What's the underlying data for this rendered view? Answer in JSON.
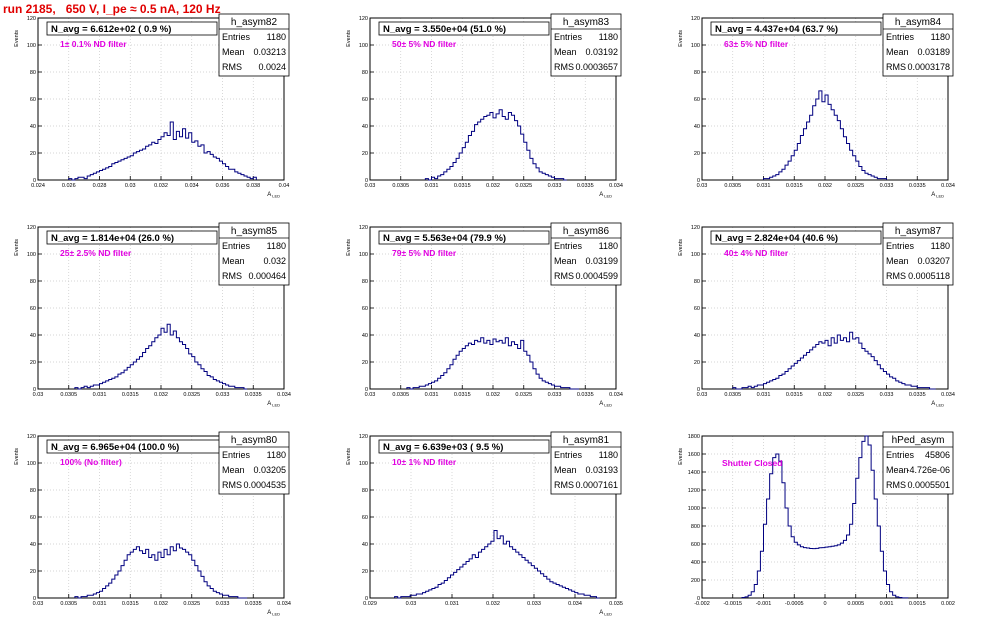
{
  "run_title": "run 2185,   650 V, I_pe ≈ 0.5 nA, 120 Hz",
  "colors": {
    "histogram_line": "#000080",
    "run_title": "#e00000",
    "filter_note": "#e000e0",
    "grid": "#c8c8c8"
  },
  "chart_data": [
    {
      "type": "histogram",
      "hist_name": "h_asym82",
      "stats": [
        {
          "label": "Entries",
          "value": "1180"
        },
        {
          "label": "Mean",
          "value": "0.03213"
        },
        {
          "label": "RMS",
          "value": "0.0024"
        }
      ],
      "navg": "N_avg = 6.612e+02 ( 0.9 %)",
      "note": "1± 0.1% ND filter",
      "ylabel": "Events",
      "xlabel": "A_LED",
      "xlim": [
        0.024,
        0.04
      ],
      "ylim": [
        0,
        120
      ],
      "xticks": [
        0.024,
        0.026,
        0.028,
        0.03,
        0.032,
        0.034,
        0.036,
        0.038,
        0.04
      ],
      "xtick_labels": [
        "0.024",
        "0.026",
        "0.028",
        "0.03",
        "0.032",
        "0.034",
        "0.036",
        "0.038",
        "0.04"
      ],
      "yticks": [
        0,
        20,
        40,
        60,
        80,
        100,
        120
      ],
      "ytick_labels": [
        "0",
        "20",
        "40",
        "60",
        "80",
        "100",
        "120"
      ],
      "bins": {
        "lo": 0.026,
        "hi": 0.0382,
        "n": 61,
        "counts": [
          1,
          0,
          1,
          2,
          2,
          1,
          3,
          4,
          5,
          6,
          7,
          8,
          9,
          10,
          12,
          13,
          14,
          15,
          16,
          17,
          18,
          20,
          21,
          22,
          23,
          25,
          26,
          28,
          27,
          30,
          32,
          35,
          33,
          43,
          30,
          36,
          32,
          38,
          31,
          35,
          28,
          29,
          25,
          26,
          20,
          21,
          19,
          17,
          16,
          14,
          12,
          10,
          8,
          8,
          6,
          5,
          4,
          3,
          2,
          1,
          2
        ]
      }
    },
    {
      "type": "histogram",
      "hist_name": "h_asym83",
      "stats": [
        {
          "label": "Entries",
          "value": "1180"
        },
        {
          "label": "Mean",
          "value": "0.03192"
        },
        {
          "label": "RMS",
          "value": "0.0003657"
        }
      ],
      "navg": "N_avg = 3.550e+04 (51.0 %)",
      "note": "50± 5% ND filter",
      "ylabel": "Events",
      "xlabel": "A_LED",
      "xlim": [
        0.03,
        0.034
      ],
      "ylim": [
        0,
        120
      ],
      "xticks": [
        0.03,
        0.0305,
        0.031,
        0.0315,
        0.032,
        0.0325,
        0.033,
        0.0335,
        0.034
      ],
      "xtick_labels": [
        "0.03",
        "0.0305",
        "0.031",
        "0.0315",
        "0.032",
        "0.0325",
        "0.033",
        "0.0335",
        "0.034"
      ],
      "yticks": [
        0,
        20,
        40,
        60,
        80,
        100,
        120
      ],
      "ytick_labels": [
        "0",
        "20",
        "40",
        "60",
        "80",
        "100",
        "120"
      ],
      "bins": {
        "lo": 0.0309,
        "hi": 0.0332,
        "n": 46,
        "counts": [
          1,
          0,
          2,
          1,
          3,
          4,
          6,
          8,
          10,
          13,
          16,
          20,
          24,
          28,
          33,
          36,
          41,
          43,
          45,
          47,
          48,
          50,
          46,
          49,
          52,
          47,
          45,
          50,
          48,
          44,
          40,
          34,
          28,
          22,
          16,
          12,
          9,
          6,
          5,
          4,
          3,
          2,
          1,
          1,
          1,
          0
        ]
      }
    },
    {
      "type": "histogram",
      "hist_name": "h_asym84",
      "stats": [
        {
          "label": "Entries",
          "value": "1180"
        },
        {
          "label": "Mean",
          "value": "0.03189"
        },
        {
          "label": "RMS",
          "value": "0.0003178"
        }
      ],
      "navg": "N_avg = 4.437e+04 (63.7 %)",
      "note": "63± 5% ND filter",
      "ylabel": "Events",
      "xlabel": "A_LED",
      "xlim": [
        0.03,
        0.034
      ],
      "ylim": [
        0,
        120
      ],
      "xticks": [
        0.03,
        0.0305,
        0.031,
        0.0315,
        0.032,
        0.0325,
        0.033,
        0.0335,
        0.034
      ],
      "xtick_labels": [
        "0.03",
        "0.0305",
        "0.031",
        "0.0315",
        "0.032",
        "0.0325",
        "0.033",
        "0.0335",
        "0.034"
      ],
      "yticks": [
        0,
        20,
        40,
        60,
        80,
        100,
        120
      ],
      "ytick_labels": [
        "0",
        "20",
        "40",
        "60",
        "80",
        "100",
        "120"
      ],
      "bins": {
        "lo": 0.031,
        "hi": 0.033,
        "n": 40,
        "counts": [
          1,
          1,
          2,
          3,
          4,
          6,
          8,
          11,
          14,
          18,
          22,
          27,
          33,
          38,
          43,
          48,
          55,
          60,
          66,
          58,
          63,
          56,
          52,
          48,
          44,
          38,
          32,
          27,
          22,
          18,
          14,
          10,
          7,
          5,
          4,
          3,
          2,
          1,
          1,
          1
        ]
      }
    },
    {
      "type": "histogram",
      "hist_name": "h_asym85",
      "stats": [
        {
          "label": "Entries",
          "value": "1180"
        },
        {
          "label": "Mean",
          "value": "0.032"
        },
        {
          "label": "RMS",
          "value": "0.000464"
        }
      ],
      "navg": "N_avg = 1.814e+04 (26.0 %)",
      "note": "25± 2.5% ND filter",
      "ylabel": "Events",
      "xlabel": "A_LED",
      "xlim": [
        0.03,
        0.034
      ],
      "ylim": [
        0,
        120
      ],
      "xticks": [
        0.03,
        0.0305,
        0.031,
        0.0315,
        0.032,
        0.0325,
        0.033,
        0.0335,
        0.034
      ],
      "xtick_labels": [
        "0.03",
        "0.0305",
        "0.031",
        "0.0315",
        "0.032",
        "0.0325",
        "0.033",
        "0.0335",
        "0.034"
      ],
      "yticks": [
        0,
        20,
        40,
        60,
        80,
        100,
        120
      ],
      "ytick_labels": [
        "0",
        "20",
        "40",
        "60",
        "80",
        "100",
        "120"
      ],
      "bins": {
        "lo": 0.0306,
        "hi": 0.0334,
        "n": 56,
        "counts": [
          1,
          0,
          1,
          2,
          1,
          2,
          3,
          3,
          4,
          5,
          6,
          7,
          8,
          9,
          11,
          12,
          14,
          16,
          18,
          20,
          22,
          24,
          27,
          30,
          32,
          35,
          38,
          40,
          45,
          42,
          48,
          40,
          43,
          38,
          35,
          33,
          30,
          26,
          24,
          20,
          18,
          15,
          13,
          10,
          9,
          7,
          6,
          5,
          4,
          3,
          2,
          2,
          1,
          1,
          1,
          0
        ]
      }
    },
    {
      "type": "histogram",
      "hist_name": "h_asym86",
      "stats": [
        {
          "label": "Entries",
          "value": "1180"
        },
        {
          "label": "Mean",
          "value": "0.03199"
        },
        {
          "label": "RMS",
          "value": "0.0004599"
        }
      ],
      "navg": "N_avg = 5.563e+04 (79.9 %)",
      "note": "79± 5% ND filter",
      "ylabel": "Events",
      "xlabel": "A_LED",
      "xlim": [
        0.03,
        0.034
      ],
      "ylim": [
        0,
        120
      ],
      "xticks": [
        0.03,
        0.0305,
        0.031,
        0.0315,
        0.032,
        0.0325,
        0.033,
        0.0335,
        0.034
      ],
      "xtick_labels": [
        "0.03",
        "0.0305",
        "0.031",
        "0.0315",
        "0.032",
        "0.0325",
        "0.033",
        "0.0335",
        "0.034"
      ],
      "yticks": [
        0,
        20,
        40,
        60,
        80,
        100,
        120
      ],
      "ytick_labels": [
        "0",
        "20",
        "40",
        "60",
        "80",
        "100",
        "120"
      ],
      "bins": {
        "lo": 0.0306,
        "hi": 0.0334,
        "n": 56,
        "counts": [
          1,
          0,
          1,
          1,
          2,
          2,
          3,
          4,
          5,
          6,
          8,
          10,
          12,
          15,
          18,
          22,
          25,
          28,
          30,
          32,
          34,
          33,
          36,
          35,
          38,
          34,
          36,
          33,
          37,
          35,
          36,
          34,
          38,
          32,
          35,
          33,
          30,
          36,
          28,
          25,
          20,
          15,
          11,
          8,
          6,
          5,
          4,
          3,
          2,
          2,
          1,
          1,
          1,
          0,
          0,
          0
        ]
      }
    },
    {
      "type": "histogram",
      "hist_name": "h_asym87",
      "stats": [
        {
          "label": "Entries",
          "value": "1180"
        },
        {
          "label": "Mean",
          "value": "0.03207"
        },
        {
          "label": "RMS",
          "value": "0.0005118"
        }
      ],
      "navg": "N_avg = 2.824e+04 (40.6 %)",
      "note": "40± 4% ND filter",
      "ylabel": "Events",
      "xlabel": "A_LED",
      "xlim": [
        0.03,
        0.034
      ],
      "ylim": [
        0,
        120
      ],
      "xticks": [
        0.03,
        0.0305,
        0.031,
        0.0315,
        0.032,
        0.0325,
        0.033,
        0.0335,
        0.034
      ],
      "xtick_labels": [
        "0.03",
        "0.0305",
        "0.031",
        "0.0315",
        "0.032",
        "0.0325",
        "0.033",
        "0.0335",
        "0.034"
      ],
      "yticks": [
        0,
        20,
        40,
        60,
        80,
        100,
        120
      ],
      "ytick_labels": [
        "0",
        "20",
        "40",
        "60",
        "80",
        "100",
        "120"
      ],
      "bins": {
        "lo": 0.0305,
        "hi": 0.0338,
        "n": 66,
        "counts": [
          1,
          0,
          0,
          1,
          1,
          2,
          1,
          2,
          3,
          3,
          4,
          5,
          6,
          7,
          8,
          10,
          11,
          13,
          15,
          17,
          19,
          21,
          23,
          25,
          27,
          29,
          31,
          33,
          35,
          34,
          36,
          32,
          38,
          34,
          40,
          36,
          38,
          35,
          42,
          37,
          38,
          34,
          30,
          28,
          26,
          24,
          21,
          18,
          15,
          13,
          11,
          9,
          8,
          6,
          5,
          4,
          3,
          3,
          2,
          2,
          1,
          1,
          1,
          1,
          0,
          0
        ]
      }
    },
    {
      "type": "histogram",
      "hist_name": "h_asym80",
      "stats": [
        {
          "label": "Entries",
          "value": "1180"
        },
        {
          "label": "Mean",
          "value": "0.03205"
        },
        {
          "label": "RMS",
          "value": "0.0004535"
        }
      ],
      "navg": "N_avg = 6.965e+04 (100.0 %)",
      "note": "100% (No filter)",
      "ylabel": "Events",
      "xlabel": "A_LED",
      "xlim": [
        0.03,
        0.034
      ],
      "ylim": [
        0,
        120
      ],
      "xticks": [
        0.03,
        0.0305,
        0.031,
        0.0315,
        0.032,
        0.0325,
        0.033,
        0.0335,
        0.034
      ],
      "xtick_labels": [
        "0.03",
        "0.0305",
        "0.031",
        "0.0315",
        "0.032",
        "0.0325",
        "0.033",
        "0.0335",
        "0.034"
      ],
      "yticks": [
        0,
        20,
        40,
        60,
        80,
        100,
        120
      ],
      "ytick_labels": [
        "0",
        "20",
        "40",
        "60",
        "80",
        "100",
        "120"
      ],
      "bins": {
        "lo": 0.0306,
        "hi": 0.0334,
        "n": 56,
        "counts": [
          1,
          0,
          1,
          1,
          2,
          2,
          3,
          4,
          5,
          7,
          9,
          11,
          14,
          17,
          20,
          24,
          28,
          32,
          34,
          36,
          38,
          35,
          33,
          36,
          30,
          32,
          28,
          34,
          30,
          36,
          32,
          38,
          35,
          40,
          37,
          36,
          34,
          32,
          28,
          24,
          20,
          16,
          12,
          9,
          7,
          5,
          4,
          3,
          2,
          2,
          1,
          1,
          1,
          0,
          0,
          0
        ]
      }
    },
    {
      "type": "histogram",
      "hist_name": "h_asym81",
      "stats": [
        {
          "label": "Entries",
          "value": "1180"
        },
        {
          "label": "Mean",
          "value": "0.03193"
        },
        {
          "label": "RMS",
          "value": "0.0007161"
        }
      ],
      "navg": "N_avg = 6.639e+03 ( 9.5 %)",
      "note": "10± 1% ND filter",
      "ylabel": "Events",
      "xlabel": "A_LED",
      "xlim": [
        0.029,
        0.035
      ],
      "ylim": [
        0,
        120
      ],
      "xticks": [
        0.029,
        0.03,
        0.031,
        0.032,
        0.033,
        0.034,
        0.035
      ],
      "xtick_labels": [
        "0.029",
        "0.03",
        "0.031",
        "0.032",
        "0.033",
        "0.034",
        "0.035"
      ],
      "yticks": [
        0,
        20,
        40,
        60,
        80,
        100,
        120
      ],
      "ytick_labels": [
        "0",
        "20",
        "40",
        "60",
        "80",
        "100",
        "120"
      ],
      "bins": {
        "lo": 0.0296,
        "hi": 0.0346,
        "n": 66,
        "counts": [
          1,
          0,
          1,
          1,
          1,
          2,
          2,
          3,
          3,
          4,
          5,
          6,
          7,
          8,
          10,
          11,
          13,
          15,
          17,
          19,
          21,
          23,
          25,
          27,
          29,
          32,
          30,
          34,
          36,
          38,
          40,
          42,
          50,
          44,
          46,
          40,
          42,
          38,
          36,
          34,
          32,
          30,
          28,
          26,
          24,
          22,
          20,
          18,
          16,
          14,
          12,
          11,
          10,
          9,
          8,
          7,
          6,
          5,
          4,
          3,
          3,
          2,
          2,
          1,
          1,
          0
        ]
      }
    },
    {
      "type": "histogram",
      "hist_name": "hPed_asym",
      "stats": [
        {
          "label": "Entries",
          "value": "45806"
        },
        {
          "label": "Mean",
          "value": "-4.726e-06"
        },
        {
          "label": "RMS",
          "value": "0.0005501"
        }
      ],
      "navg": "",
      "note": "Shutter Closed",
      "ylabel": "Events",
      "xlabel": "",
      "xlim": [
        -0.002,
        0.002
      ],
      "ylim": [
        0,
        1800
      ],
      "xticks": [
        -0.002,
        -0.0015,
        -0.001,
        -0.0005,
        0,
        0.0005,
        0.001,
        0.0015,
        0.002
      ],
      "xtick_labels": [
        "-0.002",
        "-0.0015",
        "-0.001",
        "-0.0005",
        "0",
        "0.0005",
        "0.001",
        "0.0015",
        "0.002"
      ],
      "yticks": [
        0,
        200,
        400,
        600,
        800,
        1000,
        1200,
        1400,
        1600,
        1800
      ],
      "ytick_labels": [
        "0",
        "200",
        "400",
        "600",
        "800",
        "1000",
        "1200",
        "1400",
        "1600",
        "1800"
      ],
      "bins": {
        "lo": -0.00135,
        "hi": 0.00135,
        "n": 54,
        "counts": [
          5,
          12,
          30,
          70,
          150,
          300,
          520,
          820,
          1100,
          1380,
          1560,
          1600,
          1520,
          1280,
          1000,
          800,
          680,
          620,
          590,
          570,
          560,
          555,
          550,
          548,
          552,
          558,
          560,
          565,
          570,
          575,
          580,
          590,
          610,
          640,
          700,
          820,
          1050,
          1330,
          1560,
          1740,
          1830,
          1700,
          1420,
          1100,
          800,
          520,
          300,
          150,
          70,
          30,
          12,
          5,
          2,
          1
        ]
      }
    }
  ]
}
